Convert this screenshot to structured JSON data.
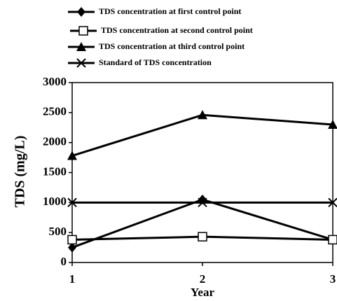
{
  "chart_data": {
    "type": "line",
    "x": [
      1,
      2,
      3
    ],
    "xlim": [
      1,
      3
    ],
    "xticks": [
      1,
      2,
      3
    ],
    "ylim": [
      0,
      3000
    ],
    "yticks": [
      0,
      500,
      1000,
      1500,
      2000,
      2500,
      3000
    ],
    "xlabel": "Year",
    "ylabel": "TDS (mg/L)",
    "grid": false,
    "series": [
      {
        "name": "TDS concentration at first control point",
        "color": "#000000",
        "marker": "diamond",
        "values": [
          250,
          1050,
          380
        ]
      },
      {
        "name": "TDS concentration at second control point",
        "color": "#000000",
        "marker": "square-open",
        "values": [
          380,
          430,
          380
        ]
      },
      {
        "name": "TDS concentration at third control point",
        "color": "#000000",
        "marker": "triangle",
        "values": [
          1780,
          2460,
          2300
        ]
      },
      {
        "name": "Standard of TDS concentration",
        "color": "#000000",
        "marker": "x",
        "values": [
          1000,
          1000,
          1000
        ]
      }
    ]
  }
}
